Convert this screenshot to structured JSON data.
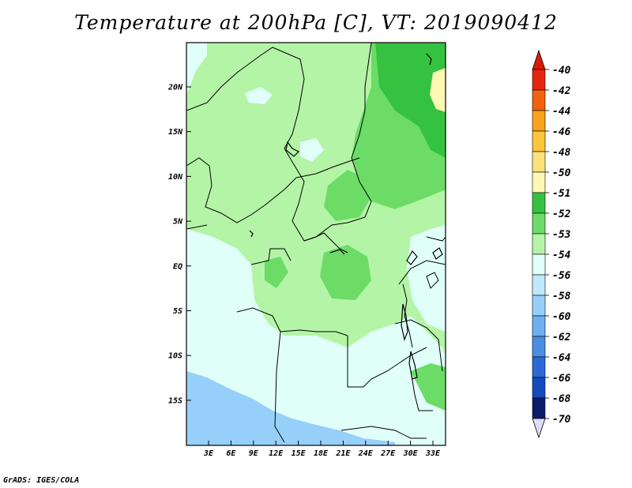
{
  "title": "Temperature at 200hPa [C], VT: 2019090412",
  "credit": "GrADS: IGES/COLA",
  "map": {
    "lat_ticks": [
      "20N",
      "15N",
      "10N",
      "5N",
      "EQ",
      "5S",
      "10S",
      "15S"
    ],
    "lon_ticks": [
      "3E",
      "6E",
      "9E",
      "12E",
      "15E",
      "18E",
      "21E",
      "24E",
      "27E",
      "30E",
      "33E"
    ]
  },
  "colorbar": {
    "entries": [
      {
        "label": "-40",
        "color": "#f0f0ff"
      },
      {
        "label": "-42",
        "color": "#e6250e"
      },
      {
        "label": "-44",
        "color": "#f2610f"
      },
      {
        "label": "-46",
        "color": "#f8a21d"
      },
      {
        "label": "-48",
        "color": "#fbc53c"
      },
      {
        "label": "-50",
        "color": "#fde27a"
      },
      {
        "label": "-51",
        "color": "#fff8b4"
      },
      {
        "label": "-52",
        "color": "#36c241"
      },
      {
        "label": "-53",
        "color": "#6cdc66"
      },
      {
        "label": "-54",
        "color": "#b4f4a6"
      },
      {
        "label": "-56",
        "color": "#e0fff9"
      },
      {
        "label": "-58",
        "color": "#c0e8ff"
      },
      {
        "label": "-60",
        "color": "#96d0fa"
      },
      {
        "label": "-62",
        "color": "#6eb0f0"
      },
      {
        "label": "-64",
        "color": "#4a8ee4"
      },
      {
        "label": "-66",
        "color": "#2a6ad6"
      },
      {
        "label": "-68",
        "color": "#144abc"
      },
      {
        "label": "-70",
        "color": "#0a2ca0"
      }
    ],
    "top_color": "#d91a0a",
    "bottom_color": "#ddddf8",
    "last_color": "#0e1a6a"
  }
}
